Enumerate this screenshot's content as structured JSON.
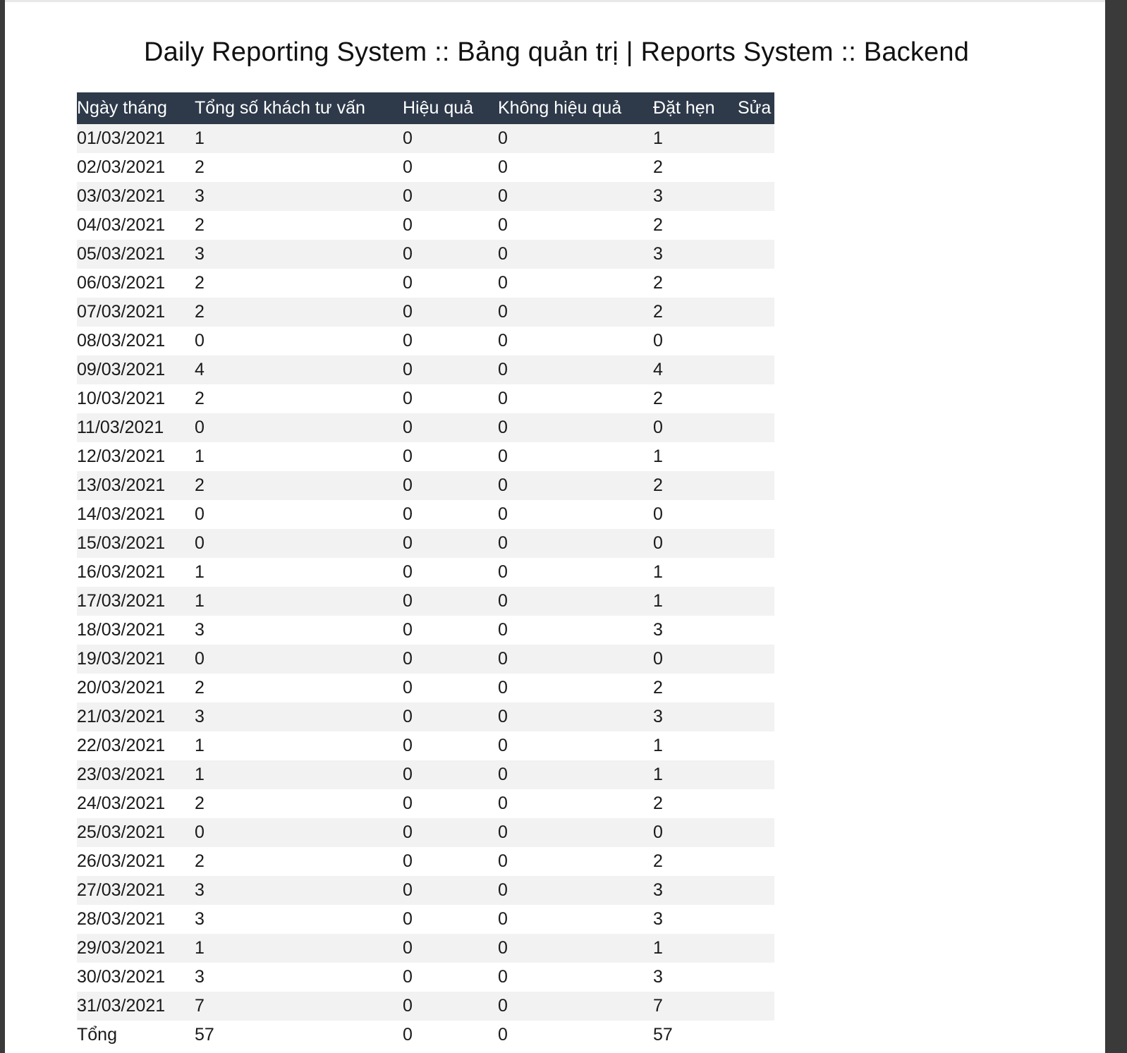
{
  "page": {
    "title": "Daily Reporting System :: Bảng quản trị | Reports System :: Backend"
  },
  "table": {
    "headers": [
      "Ngày tháng",
      "Tổng số khách tư vấn",
      "Hiệu quả",
      "Không hiệu quả",
      "Đặt hẹn",
      "Sửa"
    ],
    "rows": [
      [
        "01/03/2021",
        "1",
        "0",
        "0",
        "1",
        ""
      ],
      [
        "02/03/2021",
        "2",
        "0",
        "0",
        "2",
        ""
      ],
      [
        "03/03/2021",
        "3",
        "0",
        "0",
        "3",
        ""
      ],
      [
        "04/03/2021",
        "2",
        "0",
        "0",
        "2",
        ""
      ],
      [
        "05/03/2021",
        "3",
        "0",
        "0",
        "3",
        ""
      ],
      [
        "06/03/2021",
        "2",
        "0",
        "0",
        "2",
        ""
      ],
      [
        "07/03/2021",
        "2",
        "0",
        "0",
        "2",
        ""
      ],
      [
        "08/03/2021",
        "0",
        "0",
        "0",
        "0",
        ""
      ],
      [
        "09/03/2021",
        "4",
        "0",
        "0",
        "4",
        ""
      ],
      [
        "10/03/2021",
        "2",
        "0",
        "0",
        "2",
        ""
      ],
      [
        "11/03/2021",
        "0",
        "0",
        "0",
        "0",
        ""
      ],
      [
        "12/03/2021",
        "1",
        "0",
        "0",
        "1",
        ""
      ],
      [
        "13/03/2021",
        "2",
        "0",
        "0",
        "2",
        ""
      ],
      [
        "14/03/2021",
        "0",
        "0",
        "0",
        "0",
        ""
      ],
      [
        "15/03/2021",
        "0",
        "0",
        "0",
        "0",
        ""
      ],
      [
        "16/03/2021",
        "1",
        "0",
        "0",
        "1",
        ""
      ],
      [
        "17/03/2021",
        "1",
        "0",
        "0",
        "1",
        ""
      ],
      [
        "18/03/2021",
        "3",
        "0",
        "0",
        "3",
        ""
      ],
      [
        "19/03/2021",
        "0",
        "0",
        "0",
        "0",
        ""
      ],
      [
        "20/03/2021",
        "2",
        "0",
        "0",
        "2",
        ""
      ],
      [
        "21/03/2021",
        "3",
        "0",
        "0",
        "3",
        ""
      ],
      [
        "22/03/2021",
        "1",
        "0",
        "0",
        "1",
        ""
      ],
      [
        "23/03/2021",
        "1",
        "0",
        "0",
        "1",
        ""
      ],
      [
        "24/03/2021",
        "2",
        "0",
        "0",
        "2",
        ""
      ],
      [
        "25/03/2021",
        "0",
        "0",
        "0",
        "0",
        ""
      ],
      [
        "26/03/2021",
        "2",
        "0",
        "0",
        "2",
        ""
      ],
      [
        "27/03/2021",
        "3",
        "0",
        "0",
        "3",
        ""
      ],
      [
        "28/03/2021",
        "3",
        "0",
        "0",
        "3",
        ""
      ],
      [
        "29/03/2021",
        "1",
        "0",
        "0",
        "1",
        ""
      ],
      [
        "30/03/2021",
        "3",
        "0",
        "0",
        "3",
        ""
      ],
      [
        "31/03/2021",
        "7",
        "0",
        "0",
        "7",
        ""
      ],
      [
        "Tổng",
        "57",
        "0",
        "0",
        "57",
        ""
      ]
    ]
  },
  "colors": {
    "header_bg": "#2e3a4a",
    "header_text": "#ffffff",
    "row_alt": "#f2f2f2"
  }
}
